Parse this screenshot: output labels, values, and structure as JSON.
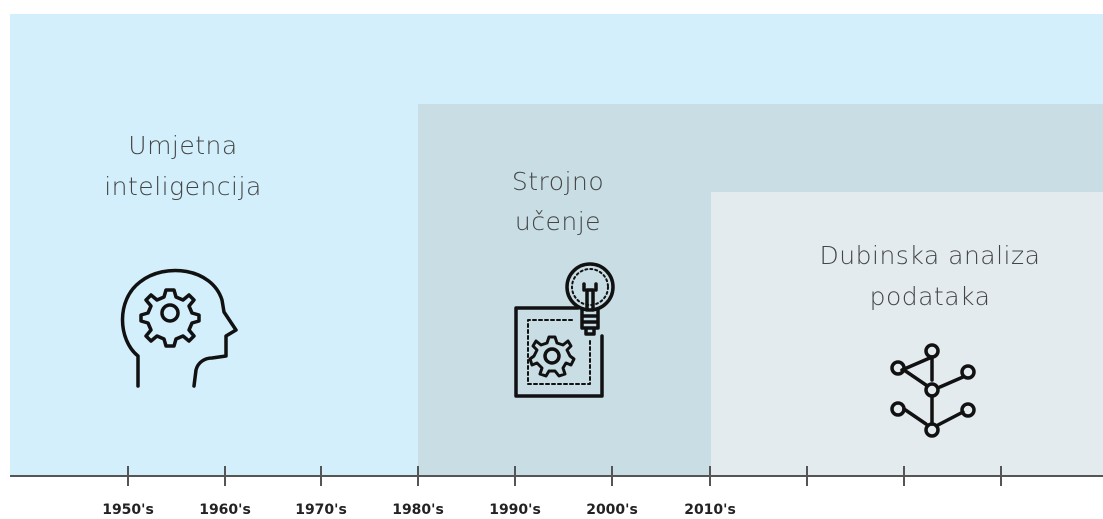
{
  "regions": [
    {
      "label": [
        "Umjetna",
        "inteligencija"
      ]
    },
    {
      "label": [
        "Strojno",
        "učenje"
      ]
    },
    {
      "label": [
        "Dubinska analiza",
        "podataka"
      ]
    }
  ],
  "timeline": {
    "labels": [
      "1950's",
      "1960's",
      "1970's",
      "1980's",
      "1990's",
      "2000's",
      "2010's"
    ]
  }
}
